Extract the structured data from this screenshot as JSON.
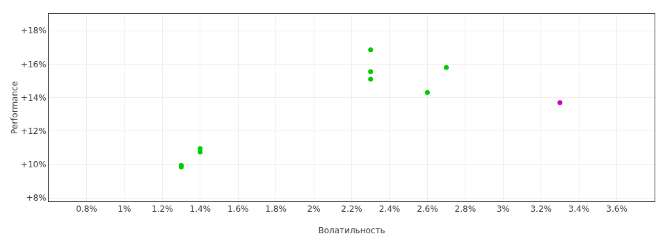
{
  "chart_data": {
    "type": "scatter",
    "xlabel": "Волатильность",
    "ylabel": "Performance",
    "xlim": [
      0.006,
      0.038
    ],
    "ylim": [
      0.078,
      0.19
    ],
    "xticks": [
      {
        "value": 0.008,
        "label": "0.8%"
      },
      {
        "value": 0.01,
        "label": "1%"
      },
      {
        "value": 0.012,
        "label": "1.2%"
      },
      {
        "value": 0.014,
        "label": "1.4%"
      },
      {
        "value": 0.016,
        "label": "1.6%"
      },
      {
        "value": 0.018,
        "label": "1.8%"
      },
      {
        "value": 0.02,
        "label": "2%"
      },
      {
        "value": 0.022,
        "label": "2.2%"
      },
      {
        "value": 0.024,
        "label": "2.4%"
      },
      {
        "value": 0.026,
        "label": "2.6%"
      },
      {
        "value": 0.028,
        "label": "2.8%"
      },
      {
        "value": 0.03,
        "label": "3%"
      },
      {
        "value": 0.032,
        "label": "3.2%"
      },
      {
        "value": 0.034,
        "label": "3.4%"
      },
      {
        "value": 0.036,
        "label": "3.6%"
      }
    ],
    "yticks": [
      {
        "value": 0.08,
        "label": "+8%"
      },
      {
        "value": 0.1,
        "label": "+10%"
      },
      {
        "value": 0.12,
        "label": "+12%"
      },
      {
        "value": 0.14,
        "label": "+14%"
      },
      {
        "value": 0.16,
        "label": "+16%"
      },
      {
        "value": 0.18,
        "label": "+18%"
      }
    ],
    "grid": true,
    "series": [
      {
        "color": "#00cc00",
        "x": [
          0.013,
          0.013,
          0.014,
          0.014,
          0.023,
          0.023,
          0.023,
          0.026,
          0.027
        ],
        "values": [
          0.0995,
          0.0985,
          0.1095,
          0.1075,
          0.1685,
          0.1555,
          0.151,
          0.143,
          0.158
        ]
      },
      {
        "color": "#cc00cc",
        "x": [
          0.033
        ],
        "values": [
          0.137
        ]
      }
    ]
  }
}
